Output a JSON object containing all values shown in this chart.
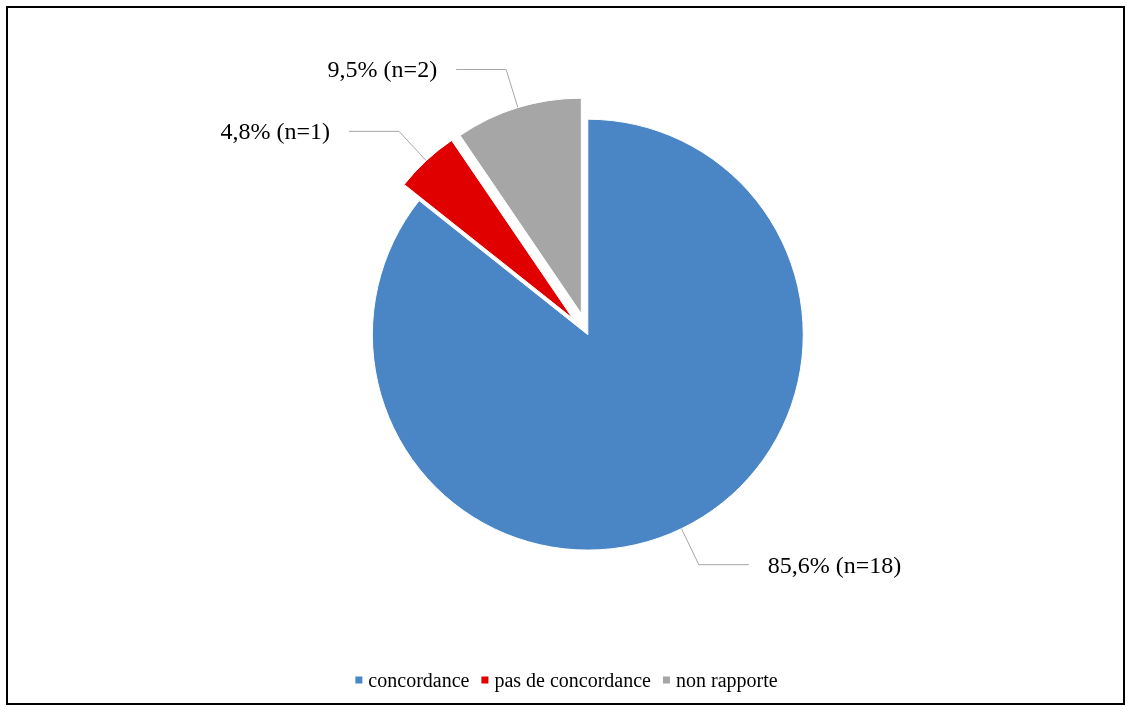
{
  "chart_data": {
    "type": "pie",
    "categories": [
      "concordance",
      "pas de concordance",
      "non rapporte"
    ],
    "values": [
      85.6,
      4.8,
      9.5
    ],
    "colors": [
      "#4a86c5",
      "#e00000",
      "#a6a6a6"
    ],
    "value_labels": [
      "85,6% (n=18)",
      "4,8% (n=1)",
      "9,5% (n=2)"
    ],
    "legend": "bottom"
  }
}
